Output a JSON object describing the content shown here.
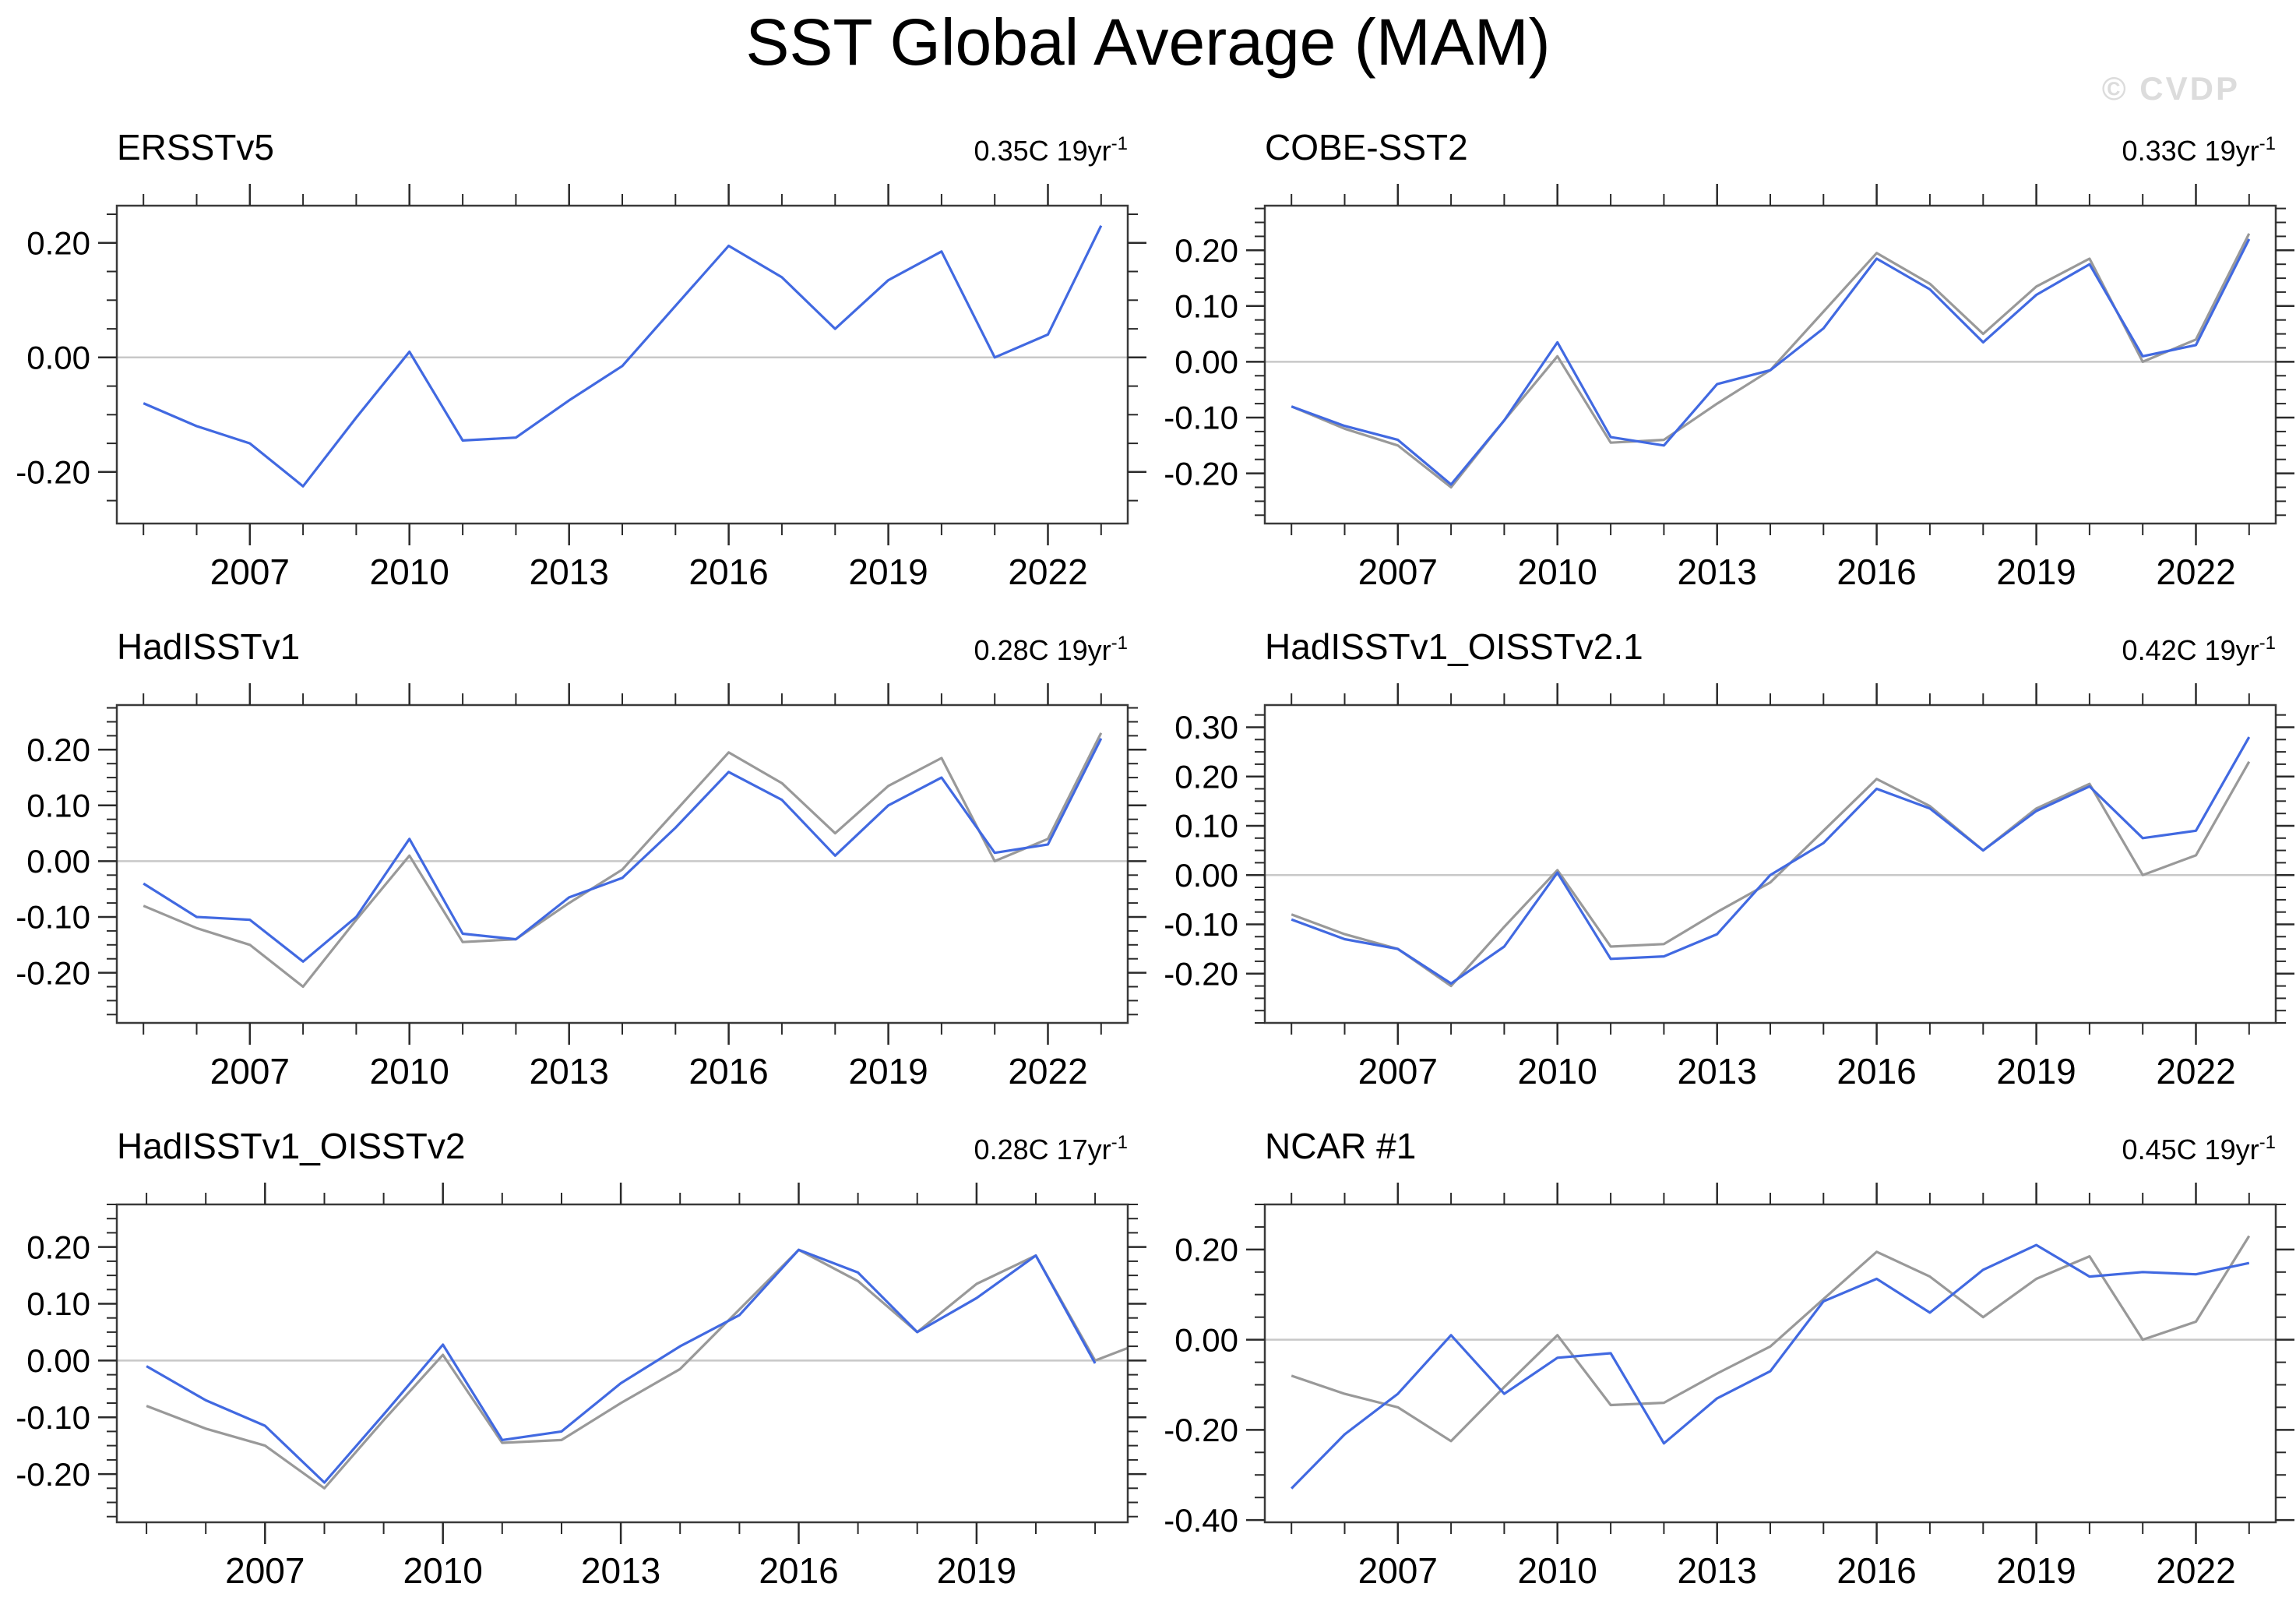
{
  "title": "SST Global Average (MAM)",
  "watermark": "© CVDP",
  "colors": {
    "main": "#4169e1",
    "ref": "#999999",
    "zero": "#c8c8c8",
    "frame": "#3a3a3a",
    "tick": "#2a2a2a"
  },
  "chart_data": [
    {
      "type": "line",
      "title": "ERSSTv5",
      "trend": "0.35C 19yr",
      "trend_sup": "-1",
      "xlim": [
        2004.5,
        2023.5
      ],
      "xmajor": [
        2007,
        2010,
        2013,
        2016,
        2019,
        2022
      ],
      "ylim": [
        -0.29,
        0.265
      ],
      "ymajor": [
        0.2,
        0.0,
        -0.2
      ],
      "yminor_step": 0.05,
      "series": [
        {
          "role": "main",
          "name": "ERSSTv5",
          "x_start": 2005,
          "x_step": 1,
          "values": [
            -0.08,
            -0.12,
            -0.15,
            -0.225,
            -0.105,
            0.01,
            -0.145,
            -0.14,
            -0.075,
            -0.015,
            0.09,
            0.195,
            0.14,
            0.05,
            0.135,
            0.185,
            0.0,
            0.04,
            0.23
          ]
        }
      ]
    },
    {
      "type": "line",
      "title": "COBE-SST2",
      "trend": "0.33C 19yr",
      "trend_sup": "-1",
      "xlim": [
        2004.5,
        2023.5
      ],
      "xmajor": [
        2007,
        2010,
        2013,
        2016,
        2019,
        2022
      ],
      "ylim": [
        -0.29,
        0.28
      ],
      "ymajor": [
        0.2,
        0.1,
        0.0,
        -0.1,
        -0.2
      ],
      "yminor_step": 0.025,
      "series": [
        {
          "role": "ref",
          "name": "reference",
          "x_start": 2005,
          "x_step": 1,
          "values": [
            -0.08,
            -0.12,
            -0.15,
            -0.225,
            -0.105,
            0.01,
            -0.145,
            -0.14,
            -0.075,
            -0.015,
            0.09,
            0.195,
            0.14,
            0.05,
            0.135,
            0.185,
            0.0,
            0.04,
            0.23
          ]
        },
        {
          "role": "main",
          "name": "COBE-SST2",
          "x_start": 2005,
          "x_step": 1,
          "values": [
            -0.08,
            -0.115,
            -0.14,
            -0.22,
            -0.105,
            0.035,
            -0.135,
            -0.15,
            -0.04,
            -0.015,
            0.06,
            0.185,
            0.13,
            0.035,
            0.12,
            0.175,
            0.01,
            0.03,
            0.22
          ]
        }
      ]
    },
    {
      "type": "line",
      "title": "HadISSTv1",
      "trend": "0.28C 19yr",
      "trend_sup": "-1",
      "xlim": [
        2004.5,
        2023.5
      ],
      "xmajor": [
        2007,
        2010,
        2013,
        2016,
        2019,
        2022
      ],
      "ylim": [
        -0.29,
        0.28
      ],
      "ymajor": [
        0.2,
        0.1,
        0.0,
        -0.1,
        -0.2
      ],
      "yminor_step": 0.025,
      "series": [
        {
          "role": "ref",
          "name": "reference",
          "x_start": 2005,
          "x_step": 1,
          "values": [
            -0.08,
            -0.12,
            -0.15,
            -0.225,
            -0.105,
            0.01,
            -0.145,
            -0.14,
            -0.075,
            -0.015,
            0.09,
            0.195,
            0.14,
            0.05,
            0.135,
            0.185,
            0.0,
            0.04,
            0.23
          ]
        },
        {
          "role": "main",
          "name": "HadISSTv1",
          "x_start": 2005,
          "x_step": 1,
          "values": [
            -0.04,
            -0.1,
            -0.105,
            -0.18,
            -0.1,
            0.04,
            -0.13,
            -0.14,
            -0.065,
            -0.03,
            0.06,
            0.16,
            0.11,
            0.01,
            0.1,
            0.15,
            0.015,
            0.03,
            0.22
          ]
        }
      ]
    },
    {
      "type": "line",
      "title": "HadISSTv1_OISSTv2.1",
      "trend": "0.42C 19yr",
      "trend_sup": "-1",
      "xlim": [
        2004.5,
        2023.5
      ],
      "xmajor": [
        2007,
        2010,
        2013,
        2016,
        2019,
        2022
      ],
      "ylim": [
        -0.3,
        0.345
      ],
      "ymajor": [
        0.3,
        0.2,
        0.1,
        0.0,
        -0.1,
        -0.2
      ],
      "yminor_step": 0.025,
      "series": [
        {
          "role": "ref",
          "name": "reference",
          "x_start": 2005,
          "x_step": 1,
          "values": [
            -0.08,
            -0.12,
            -0.15,
            -0.225,
            -0.105,
            0.01,
            -0.145,
            -0.14,
            -0.075,
            -0.015,
            0.09,
            0.195,
            0.14,
            0.05,
            0.135,
            0.185,
            0.0,
            0.04,
            0.23
          ]
        },
        {
          "role": "main",
          "name": "HadISSTv1_OISSTv2.1",
          "x_start": 2005,
          "x_step": 1,
          "values": [
            -0.09,
            -0.13,
            -0.15,
            -0.22,
            -0.145,
            0.005,
            -0.17,
            -0.165,
            -0.12,
            0.0,
            0.065,
            0.175,
            0.135,
            0.05,
            0.13,
            0.18,
            0.075,
            0.09,
            0.28
          ]
        }
      ]
    },
    {
      "type": "line",
      "title": "HadISSTv1_OISSTv2",
      "trend": "0.28C 17yr",
      "trend_sup": "-1",
      "xlim": [
        2004.5,
        2021.55
      ],
      "xmajor": [
        2007,
        2010,
        2013,
        2016,
        2019
      ],
      "ylim": [
        -0.285,
        0.275
      ],
      "ymajor": [
        0.2,
        0.1,
        0.0,
        -0.1,
        -0.2
      ],
      "yminor_step": 0.025,
      "series": [
        {
          "role": "ref",
          "name": "reference",
          "x_start": 2005,
          "x_step": 1,
          "values": [
            -0.08,
            -0.12,
            -0.15,
            -0.225,
            -0.105,
            0.01,
            -0.145,
            -0.14,
            -0.075,
            -0.015,
            0.09,
            0.195,
            0.14,
            0.05,
            0.135,
            0.185,
            0.0,
            0.04
          ]
        },
        {
          "role": "main",
          "name": "HadISSTv1_OISSTv2",
          "x_start": 2005,
          "x_step": 1,
          "values": [
            -0.01,
            -0.07,
            -0.115,
            -0.215,
            -0.095,
            0.028,
            -0.14,
            -0.125,
            -0.04,
            0.025,
            0.08,
            0.195,
            0.155,
            0.05,
            0.11,
            0.185,
            -0.005
          ]
        }
      ]
    },
    {
      "type": "line",
      "title": "NCAR #1",
      "trend": "0.45C 19yr",
      "trend_sup": "-1",
      "xlim": [
        2004.5,
        2023.5
      ],
      "xmajor": [
        2007,
        2010,
        2013,
        2016,
        2019,
        2022
      ],
      "ylim": [
        -0.405,
        0.3
      ],
      "ymajor": [
        0.2,
        0.0,
        -0.2,
        -0.4
      ],
      "yminor_step": 0.05,
      "series": [
        {
          "role": "ref",
          "name": "reference",
          "x_start": 2005,
          "x_step": 1,
          "values": [
            -0.08,
            -0.12,
            -0.15,
            -0.225,
            -0.105,
            0.01,
            -0.145,
            -0.14,
            -0.075,
            -0.015,
            0.09,
            0.195,
            0.14,
            0.05,
            0.135,
            0.185,
            0.0,
            0.04,
            0.23
          ]
        },
        {
          "role": "main",
          "name": "NCAR #1",
          "x_start": 2005,
          "x_step": 1,
          "values": [
            -0.33,
            -0.21,
            -0.12,
            0.01,
            -0.12,
            -0.04,
            -0.03,
            -0.23,
            -0.13,
            -0.07,
            0.085,
            0.135,
            0.06,
            0.155,
            0.21,
            0.14,
            0.15,
            0.145,
            0.17
          ]
        }
      ]
    }
  ]
}
